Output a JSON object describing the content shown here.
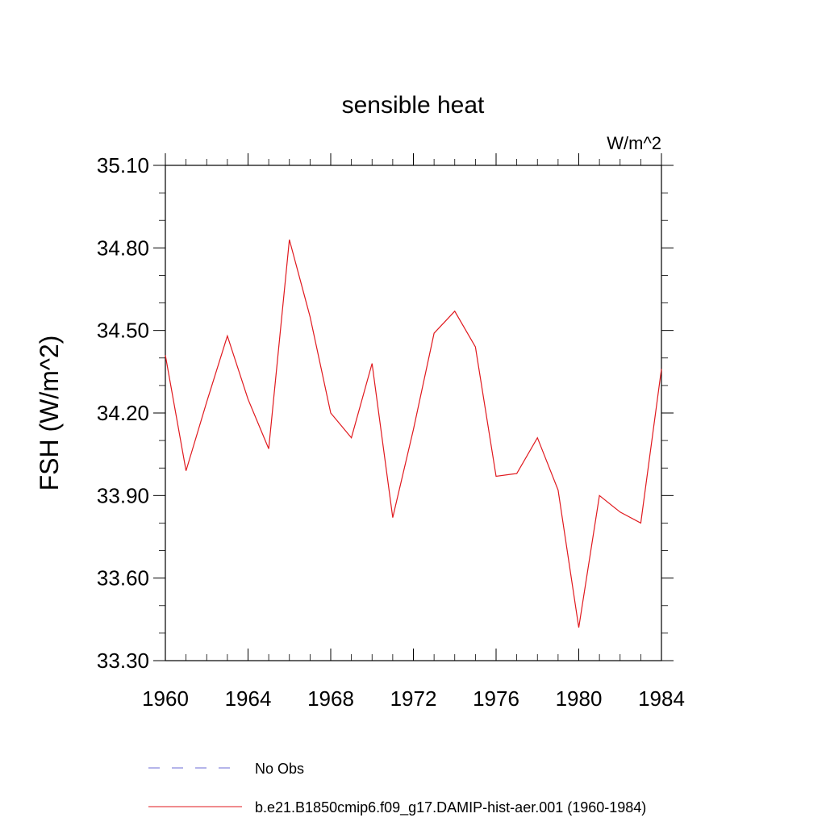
{
  "chart_data": {
    "type": "line",
    "title": "sensible heat",
    "units": "W/m^2",
    "ylabel": "FSH  (W/m^2)",
    "xlabel": "",
    "xlim": [
      1960,
      1984
    ],
    "ylim": [
      33.3,
      35.1
    ],
    "x_ticks": [
      1960,
      1964,
      1968,
      1972,
      1976,
      1980,
      1984
    ],
    "x_tick_labels": [
      "1960",
      "1964",
      "1968",
      "1972",
      "1976",
      "1980",
      "1984"
    ],
    "y_ticks": [
      33.3,
      33.6,
      33.9,
      34.2,
      34.5,
      34.8,
      35.1
    ],
    "y_tick_labels": [
      "33.30",
      "33.60",
      "33.90",
      "34.20",
      "34.50",
      "34.80",
      "35.10"
    ],
    "grid": false,
    "legend_position": "bottom",
    "series": [
      {
        "name": "b.e21.B1850cmip6.f09_g17.DAMIP-hist-aer.001 (1960-1984)",
        "color": "#e0191e",
        "style": "solid",
        "x": [
          1960,
          1961,
          1962,
          1963,
          1964,
          1965,
          1966,
          1967,
          1968,
          1969,
          1970,
          1971,
          1972,
          1973,
          1974,
          1975,
          1976,
          1977,
          1978,
          1979,
          1980,
          1981,
          1982,
          1983,
          1984
        ],
        "y": [
          34.41,
          33.99,
          34.24,
          34.48,
          34.25,
          34.07,
          34.83,
          34.55,
          34.2,
          34.11,
          34.38,
          33.82,
          34.14,
          34.49,
          34.57,
          34.44,
          33.97,
          33.98,
          34.11,
          33.92,
          33.42,
          33.9,
          33.84,
          33.8,
          34.36
        ]
      }
    ],
    "legend_extra": [
      {
        "name": "No Obs",
        "color": "#6b6bd6",
        "style": "dashed"
      }
    ]
  }
}
